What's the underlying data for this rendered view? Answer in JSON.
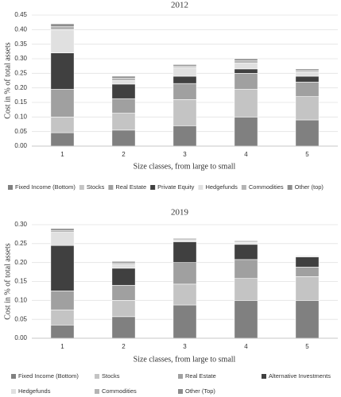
{
  "chart_data": [
    {
      "type": "bar",
      "stacked": true,
      "title": "2012",
      "x_label": "Size classes, from large to small",
      "y_label": "Cost in % of total assets",
      "categories": [
        "1",
        "2",
        "3",
        "4",
        "5"
      ],
      "ylim": [
        0,
        0.45
      ],
      "yticks": [
        {
          "value": 0,
          "label": "0.00"
        },
        {
          "value": 0.05,
          "label": "0.05"
        },
        {
          "value": 0.1,
          "label": "0.10"
        },
        {
          "value": 0.15,
          "label": "0.15"
        },
        {
          "value": 0.2,
          "label": "0.20"
        },
        {
          "value": 0.25,
          "label": "0.25"
        },
        {
          "value": 0.3,
          "label": "0.30"
        },
        {
          "value": 0.35,
          "label": "0.35"
        },
        {
          "value": 0.4,
          "label": "0.40"
        },
        {
          "value": 0.45,
          "label": "0.45"
        }
      ],
      "grid": true,
      "legend": "bottom",
      "series": [
        {
          "name": "Fixed Income (Bottom)",
          "color": "#808080",
          "values": [
            0.046,
            0.055,
            0.07,
            0.1,
            0.09
          ]
        },
        {
          "name": "Stocks",
          "color": "#c4c4c4",
          "values": [
            0.054,
            0.058,
            0.09,
            0.095,
            0.08
          ]
        },
        {
          "name": "Real Estate",
          "color": "#a0a0a0",
          "values": [
            0.095,
            0.05,
            0.055,
            0.055,
            0.05
          ]
        },
        {
          "name": "Private Equity",
          "color": "#404040",
          "values": [
            0.125,
            0.05,
            0.025,
            0.015,
            0.02
          ]
        },
        {
          "name": "Hedgefunds",
          "color": "#e0e0e0",
          "values": [
            0.08,
            0.012,
            0.03,
            0.02,
            0.015
          ]
        },
        {
          "name": "Commodities",
          "color": "#b4b4b4",
          "values": [
            0.01,
            0.008,
            0.005,
            0.008,
            0.005
          ]
        },
        {
          "name": "Other (top)",
          "color": "#8c8c8c",
          "values": [
            0.01,
            0.007,
            0.005,
            0.007,
            0.005
          ]
        }
      ]
    },
    {
      "type": "bar",
      "stacked": true,
      "title": "2019",
      "x_label": "Size classes, from large to small",
      "y_label": "Cost in % of total assets",
      "categories": [
        "1",
        "2",
        "3",
        "4",
        "5"
      ],
      "ylim": [
        0,
        0.3
      ],
      "yticks": [
        {
          "value": 0,
          "label": "0.00"
        },
        {
          "value": 0.05,
          "label": "0.05"
        },
        {
          "value": 0.1,
          "label": "0.10"
        },
        {
          "value": 0.15,
          "label": "0.15"
        },
        {
          "value": 0.2,
          "label": "0.20"
        },
        {
          "value": 0.25,
          "label": "0.25"
        },
        {
          "value": 0.3,
          "label": "0.30"
        }
      ],
      "grid": true,
      "legend": "bottom",
      "series": [
        {
          "name": "Fixed Income (Bottom)",
          "color": "#808080",
          "values": [
            0.035,
            0.057,
            0.088,
            0.1,
            0.1
          ]
        },
        {
          "name": "Stocks",
          "color": "#c4c4c4",
          "values": [
            0.04,
            0.043,
            0.055,
            0.058,
            0.063
          ]
        },
        {
          "name": "Real Estate",
          "color": "#a0a0a0",
          "values": [
            0.05,
            0.04,
            0.057,
            0.05,
            0.025
          ]
        },
        {
          "name": "Alternative Investments",
          "color": "#404040",
          "values": [
            0.12,
            0.045,
            0.055,
            0.04,
            0.027
          ]
        },
        {
          "name": "Hedgefunds",
          "color": "#e0e0e0",
          "values": [
            0.035,
            0.01,
            0.005,
            0.005,
            0.003
          ]
        },
        {
          "name": "Commodities",
          "color": "#b4b4b4",
          "values": [
            0.005,
            0.004,
            0.003,
            0.003,
            0.001
          ]
        },
        {
          "name": "Other (Top)",
          "color": "#8c8c8c",
          "values": [
            0.005,
            0.004,
            0.002,
            0.002,
            0.001
          ]
        }
      ]
    }
  ]
}
